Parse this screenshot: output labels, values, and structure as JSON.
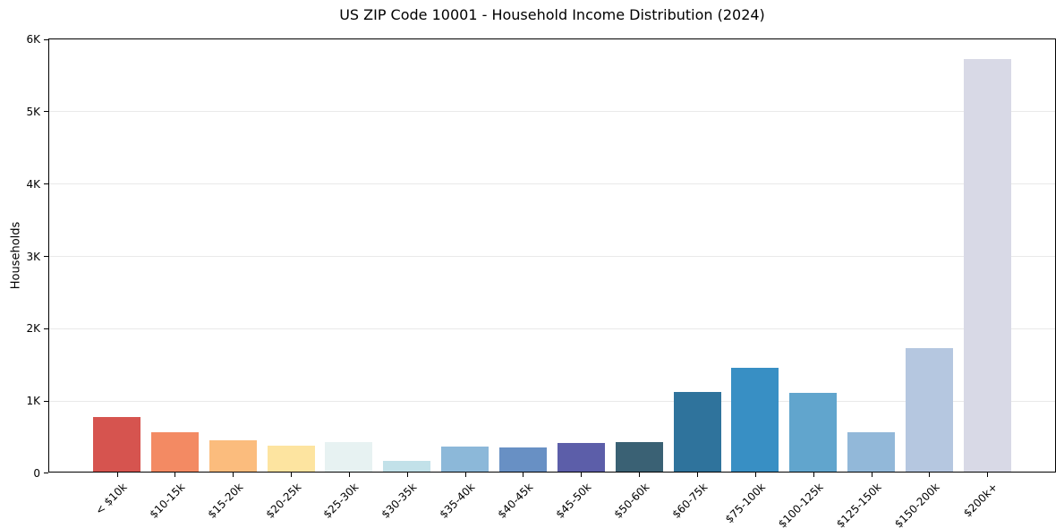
{
  "chart_data": {
    "type": "bar",
    "title": "US ZIP Code 10001 - Household Income Distribution (2024)",
    "xlabel": "",
    "ylabel": "Households",
    "categories": [
      "< $10k",
      "$10-15k",
      "$15-20k",
      "$20-25k",
      "$25-30k",
      "$30-35k",
      "$35-40k",
      "$40-45k",
      "$45-50k",
      "$50-60k",
      "$60-75k",
      "$75-100k",
      "$100-125k",
      "$125-150k",
      "$150-200k",
      "$200k+"
    ],
    "values": [
      750,
      545,
      435,
      365,
      410,
      145,
      345,
      340,
      400,
      405,
      1100,
      1435,
      1085,
      550,
      1705,
      5700
    ],
    "bar_colors": [
      "#d6544f",
      "#f38a63",
      "#fbbc7d",
      "#fde4a0",
      "#e7f2f2",
      "#c2e1e9",
      "#8cb8d9",
      "#6890c4",
      "#5c5ea9",
      "#3a6174",
      "#2f739c",
      "#388fc4",
      "#61a5cd",
      "#92b8d9",
      "#b5c7e0",
      "#d8d9e6"
    ],
    "ylim": [
      0,
      6000
    ],
    "yticks": {
      "values": [
        0,
        1000,
        2000,
        3000,
        4000,
        5000,
        6000
      ],
      "labels": [
        "0",
        "1K",
        "2K",
        "3K",
        "4K",
        "5K",
        "6K"
      ]
    },
    "grid": "horizontal-light",
    "grid_color": "#e9e9e9",
    "legend": "none",
    "background": "#ffffff"
  }
}
